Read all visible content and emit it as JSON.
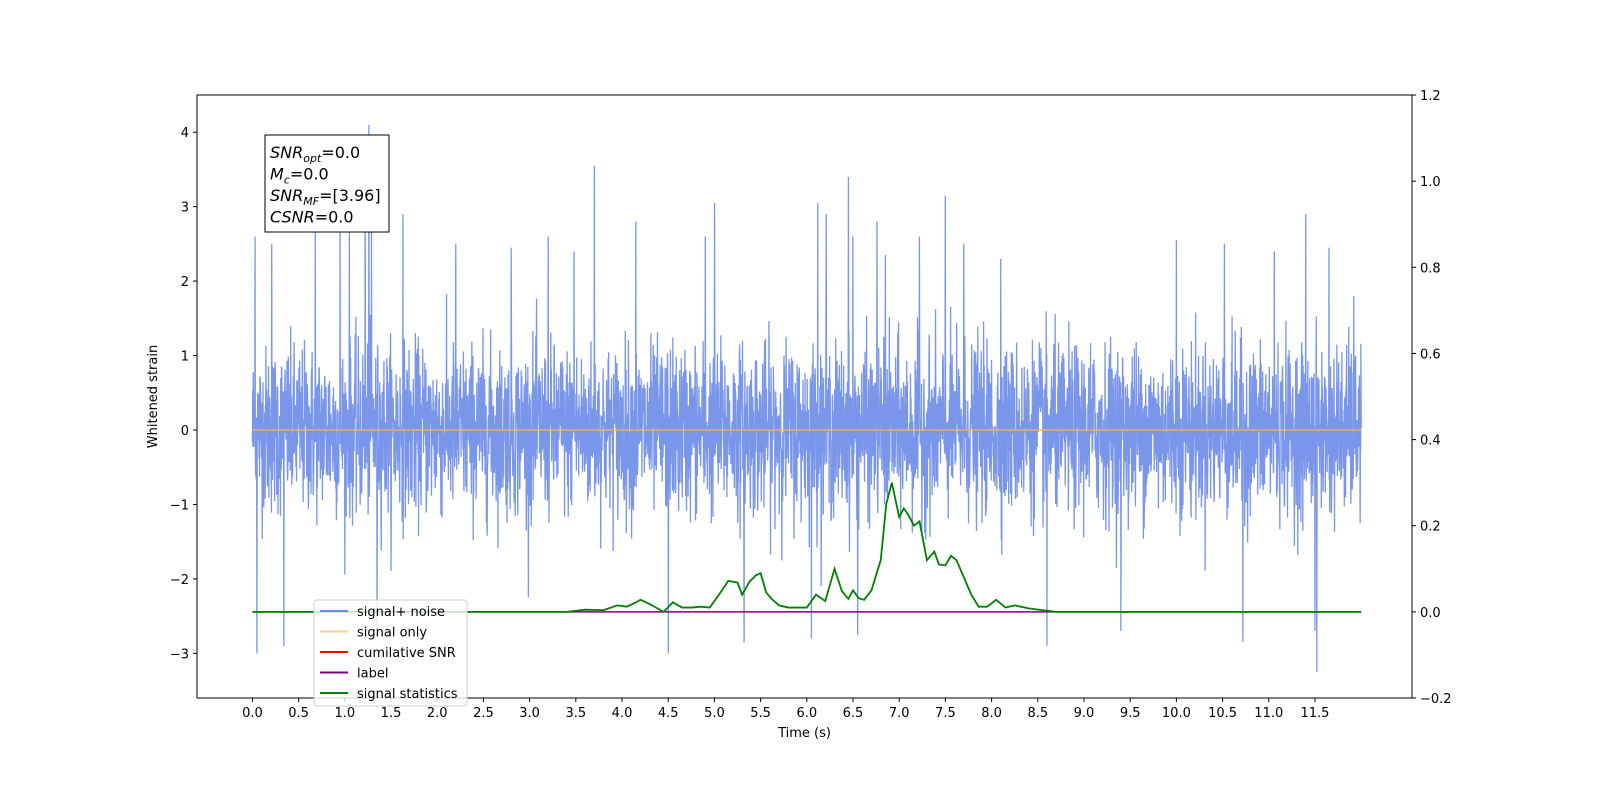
{
  "chart_data": {
    "type": "line",
    "title": "",
    "xlabel": "Time (s)",
    "ylabel_left": "Whitened strain",
    "ylabel_right": "",
    "xlim": [
      -0.6,
      12.55
    ],
    "ylim_left": [
      -3.6,
      4.5
    ],
    "ylim_right": [
      -0.2,
      1.2
    ],
    "x_ticks": [
      "0.0",
      "0.5",
      "1.0",
      "1.5",
      "2.0",
      "2.5",
      "3.0",
      "3.5",
      "4.0",
      "4.5",
      "5.0",
      "5.5",
      "6.0",
      "6.5",
      "7.0",
      "7.5",
      "8.0",
      "8.5",
      "9.0",
      "9.5",
      "10.0",
      "10.5",
      "11.0",
      "11.5"
    ],
    "y_ticks_left": [
      "−3",
      "−2",
      "−1",
      "0",
      "1",
      "2",
      "3",
      "4"
    ],
    "y_ticks_right": [
      "−0.2",
      "0.0",
      "0.2",
      "0.4",
      "0.6",
      "0.8",
      "1.0",
      "1.2"
    ],
    "grid": false,
    "legend_placement": "lower-left",
    "annotation": {
      "lines": [
        {
          "main": "SNR",
          "sub": "opt",
          "value": "=0.0"
        },
        {
          "main": "M",
          "sub": "c",
          "value": "=0.0"
        },
        {
          "main": "SNR",
          "sub": "MF",
          "value": "=[3.96]"
        },
        {
          "main": "CSNR",
          "sub": "",
          "value": "=0.0"
        }
      ]
    },
    "series": [
      {
        "name": "signal+ noise",
        "color": "#4169e1",
        "axis": "left",
        "style": "noise",
        "x_range": [
          0.0,
          12.0
        ],
        "amplitude_std": 0.9,
        "peaks": [
          {
            "x": 0.03,
            "y": 2.6
          },
          {
            "x": 0.05,
            "y": -3.0
          },
          {
            "x": 0.21,
            "y": 2.5
          },
          {
            "x": 0.34,
            "y": -2.9
          },
          {
            "x": 0.68,
            "y": 2.7
          },
          {
            "x": 0.95,
            "y": 3.1
          },
          {
            "x": 1.05,
            "y": 2.7
          },
          {
            "x": 1.22,
            "y": 3.7
          },
          {
            "x": 1.26,
            "y": 4.1
          },
          {
            "x": 1.29,
            "y": 2.7
          },
          {
            "x": 1.63,
            "y": 2.9
          },
          {
            "x": 1.35,
            "y": -2.7
          },
          {
            "x": 2.2,
            "y": 2.5
          },
          {
            "x": 2.8,
            "y": 2.45
          },
          {
            "x": 3.2,
            "y": 2.6
          },
          {
            "x": 3.48,
            "y": 2.4
          },
          {
            "x": 3.7,
            "y": 3.55
          },
          {
            "x": 4.15,
            "y": 2.8
          },
          {
            "x": 4.5,
            "y": -3.0
          },
          {
            "x": 4.9,
            "y": 2.6
          },
          {
            "x": 5.0,
            "y": 3.05
          },
          {
            "x": 5.32,
            "y": -2.85
          },
          {
            "x": 6.05,
            "y": -2.8
          },
          {
            "x": 6.12,
            "y": 3.05
          },
          {
            "x": 6.21,
            "y": 2.9
          },
          {
            "x": 6.45,
            "y": 3.4
          },
          {
            "x": 6.5,
            "y": 2.6
          },
          {
            "x": 6.55,
            "y": -2.75
          },
          {
            "x": 6.76,
            "y": 2.8
          },
          {
            "x": 6.85,
            "y": 2.35
          },
          {
            "x": 7.22,
            "y": 2.6
          },
          {
            "x": 7.5,
            "y": 3.15
          },
          {
            "x": 7.7,
            "y": 2.5
          },
          {
            "x": 8.1,
            "y": 2.3
          },
          {
            "x": 8.6,
            "y": -2.9
          },
          {
            "x": 9.4,
            "y": -2.7
          },
          {
            "x": 10.0,
            "y": 2.55
          },
          {
            "x": 10.52,
            "y": 2.5
          },
          {
            "x": 10.72,
            "y": -2.85
          },
          {
            "x": 11.06,
            "y": 2.4
          },
          {
            "x": 11.4,
            "y": 2.9
          },
          {
            "x": 11.5,
            "y": -2.7
          },
          {
            "x": 11.52,
            "y": -3.25
          },
          {
            "x": 11.65,
            "y": 2.45
          },
          {
            "x": 11.92,
            "y": 1.8
          }
        ]
      },
      {
        "name": "signal only",
        "color": "#ffb347",
        "axis": "left",
        "x": [
          0.0,
          12.0
        ],
        "y": [
          0.0,
          0.0
        ]
      },
      {
        "name": "cumilative SNR",
        "color": "#ff0000",
        "axis": "right",
        "x": [],
        "y": []
      },
      {
        "name": "label",
        "color": "#800080",
        "axis": "right",
        "x": [
          0.0,
          12.0
        ],
        "y": [
          0.0,
          0.0
        ]
      },
      {
        "name": "signal statistics",
        "color": "#008000",
        "axis": "right",
        "x": [
          0.0,
          3.0,
          3.4,
          3.6,
          3.8,
          3.95,
          4.05,
          4.15,
          4.2,
          4.3,
          4.45,
          4.55,
          4.65,
          4.75,
          4.85,
          4.95,
          5.05,
          5.15,
          5.25,
          5.3,
          5.38,
          5.45,
          5.5,
          5.56,
          5.62,
          5.7,
          5.8,
          5.9,
          6.0,
          6.1,
          6.2,
          6.3,
          6.38,
          6.45,
          6.5,
          6.56,
          6.62,
          6.7,
          6.8,
          6.86,
          6.92,
          7.0,
          7.05,
          7.1,
          7.16,
          7.22,
          7.3,
          7.38,
          7.43,
          7.5,
          7.56,
          7.62,
          7.7,
          7.78,
          7.86,
          7.95,
          8.05,
          8.15,
          8.25,
          8.4,
          8.55,
          8.7,
          9.0,
          12.0
        ],
        "y": [
          0.0,
          0.0,
          0.0,
          0.005,
          0.004,
          0.015,
          0.012,
          0.022,
          0.028,
          0.018,
          0.0,
          0.022,
          0.01,
          0.01,
          0.012,
          0.01,
          0.04,
          0.072,
          0.068,
          0.04,
          0.07,
          0.085,
          0.09,
          0.045,
          0.03,
          0.015,
          0.01,
          0.01,
          0.01,
          0.04,
          0.025,
          0.1,
          0.048,
          0.03,
          0.05,
          0.032,
          0.028,
          0.05,
          0.12,
          0.25,
          0.3,
          0.22,
          0.24,
          0.225,
          0.2,
          0.21,
          0.12,
          0.14,
          0.11,
          0.108,
          0.13,
          0.12,
          0.08,
          0.04,
          0.012,
          0.012,
          0.028,
          0.01,
          0.015,
          0.008,
          0.004,
          0.0,
          0.0,
          0.0
        ]
      }
    ]
  }
}
